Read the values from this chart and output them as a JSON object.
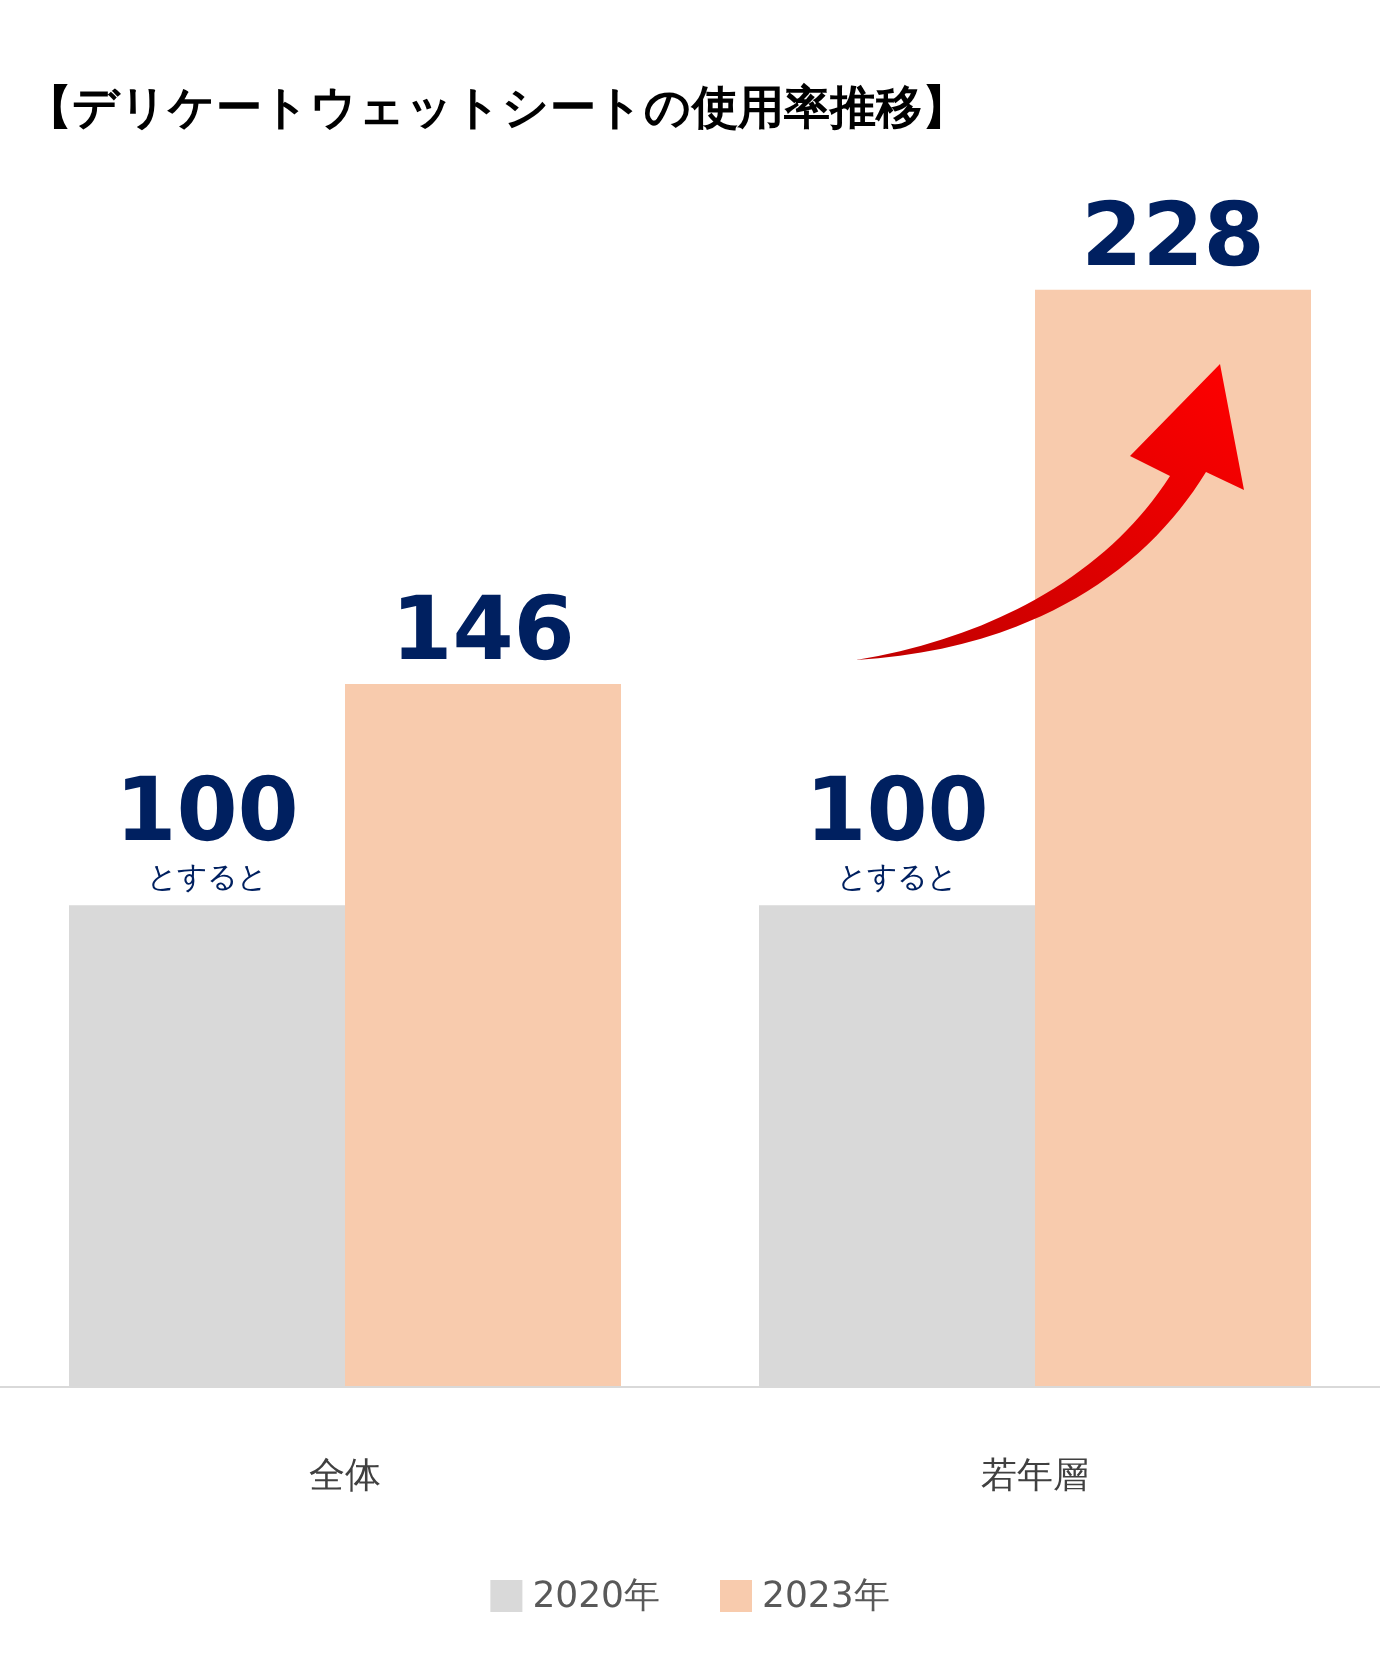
{
  "chart_data": {
    "type": "bar",
    "title": "【デリケートウェットシートの使用率推移】",
    "categories": [
      "全体",
      "若年層"
    ],
    "series": [
      {
        "name": "2020年",
        "color": "#d9d9d9",
        "values": [
          100,
          100
        ],
        "value_labels": [
          "100\nとすると",
          "100\nとすると"
        ]
      },
      {
        "name": "2023年",
        "color": "#f8cbad",
        "values": [
          146,
          228
        ],
        "value_labels": [
          "146",
          "228"
        ]
      }
    ],
    "tick_labels": "x",
    "grid": false,
    "legend": "bottom"
  }
}
